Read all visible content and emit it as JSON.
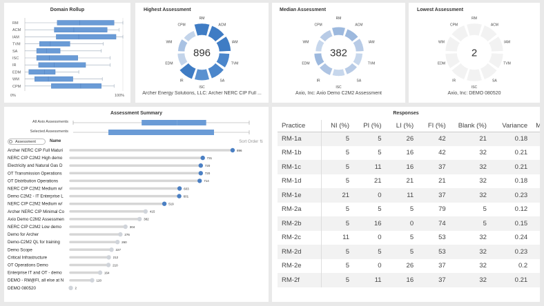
{
  "domain_rollup": {
    "title": "Domain Rollup",
    "x_min_label": "0%",
    "x_max_label": "100%",
    "chart_data": {
      "type": "boxplot",
      "categories": [
        "RM",
        "ACM",
        "IAM",
        "TVM",
        "SA",
        "ISC",
        "IR",
        "EDM",
        "WM",
        "CPM"
      ],
      "boxes": [
        {
          "min": 0.0,
          "q1": 0.33,
          "median": 0.56,
          "q3": 0.91,
          "max": 1.0
        },
        {
          "min": 0.0,
          "q1": 0.3,
          "median": 0.5,
          "q3": 0.84,
          "max": 0.96
        },
        {
          "min": 0.0,
          "q1": 0.32,
          "median": 0.55,
          "q3": 0.93,
          "max": 1.0
        },
        {
          "min": 0.0,
          "q1": 0.15,
          "median": 0.26,
          "q3": 0.46,
          "max": 0.8
        },
        {
          "min": 0.0,
          "q1": 0.12,
          "median": 0.22,
          "q3": 0.36,
          "max": 0.78
        },
        {
          "min": 0.0,
          "q1": 0.12,
          "median": 0.25,
          "q3": 0.54,
          "max": 0.87
        },
        {
          "min": 0.0,
          "q1": 0.14,
          "median": 0.3,
          "q3": 0.62,
          "max": 0.87
        },
        {
          "min": 0.0,
          "q1": 0.04,
          "median": 0.2,
          "q3": 0.31,
          "max": 0.55
        },
        {
          "min": 0.0,
          "q1": 0.1,
          "median": 0.24,
          "q3": 0.49,
          "max": 0.79
        },
        {
          "min": 0.0,
          "q1": 0.27,
          "median": 0.57,
          "q3": 0.78,
          "max": 0.91
        }
      ]
    }
  },
  "highest": {
    "title": "Highest Assessment",
    "score": "896",
    "caption": "Archer Energy Solutions, LLC: Archer NERC CIP Full ...",
    "chart_data": {
      "type": "radial",
      "categories": [
        "RM",
        "ACM",
        "IAM",
        "TVM",
        "SA",
        "ISC",
        "IR",
        "EDM",
        "WM",
        "CPM"
      ],
      "values": [
        1.0,
        0.95,
        1.0,
        0.85,
        0.88,
        0.9,
        0.95,
        0.5,
        0.45,
        0.35
      ],
      "colors": [
        "#3f7cc4",
        "#3f7cc4",
        "#3f7cc4",
        "#4b86cb",
        "#4b86cb",
        "#5a91d0",
        "#3f7cc4",
        "#c3d4ea",
        "#a9c2e3",
        "#c3d4ea"
      ]
    }
  },
  "median": {
    "title": "Median Assessment",
    "score": "382",
    "caption": "Axio, Inc: Axio Demo C2M2 Assessment",
    "chart_data": {
      "type": "radial",
      "categories": [
        "RM",
        "ACM",
        "IAM",
        "TVM",
        "SA",
        "ISC",
        "IR",
        "EDM",
        "WM",
        "CPM"
      ],
      "values": [
        0.6,
        0.55,
        0.58,
        0.45,
        0.4,
        0.42,
        0.5,
        0.5,
        0.35,
        0.45
      ],
      "colors": [
        "#9db9de",
        "#9db9de",
        "#b8cbe6",
        "#c7d7ec",
        "#b8cbe6",
        "#c7d7ec",
        "#aec4e3",
        "#9db9de",
        "#c7d7ec",
        "#b8cbe6"
      ]
    }
  },
  "lowest": {
    "title": "Lowest Assessment",
    "score": "2",
    "caption": "Axio, Inc: DEMO 080520",
    "chart_data": {
      "type": "radial",
      "categories": [
        "RM",
        "ACM",
        "IAM",
        "TVM",
        "SA",
        "ISC",
        "IR",
        "EDM",
        "WM",
        "CPM"
      ],
      "values": [
        0,
        0,
        0,
        0,
        0,
        0,
        0,
        0,
        0,
        0
      ],
      "colors": [
        "#f2f2f2",
        "#f2f2f2",
        "#f2f2f2",
        "#f2f2f2",
        "#f2f2f2",
        "#f2f2f2",
        "#f2f2f2",
        "#f2f2f2",
        "#f2f2f2",
        "#f2f2f2"
      ]
    }
  },
  "summary": {
    "title": "Assessment Summary",
    "all_label": "All Axio Assessments",
    "selected_label": "Selected Assessments",
    "toggle_label": "Assessment",
    "name_label": "Name",
    "sort_label": "Sort Order",
    "sort_icon": "sort-icon",
    "chart_data": {
      "type": "lollipop",
      "xmax": 900,
      "categories": [
        "Archer NERC CIP Full Maturi",
        "NERC CIP C2M2 High demo",
        "Electricity and Natural Gas D",
        "OT Transmission Operations",
        "OT Distribution Operations",
        "NERC CIP C2M2 Medium w/",
        "Demo C2M2 - IT Enterprise L",
        "NERC CIP C2M2 Medium w/",
        "Archer NERC CIP Minimal Co",
        "Axio Demo C2M2 Assessmen",
        "NERC CIP C2M2 Low demo",
        "Demo for Archer",
        "Demo-C2M2 QL for training",
        "Demo Scope",
        "Critical Infrastructure",
        "OT Operations Demo",
        "Enterprise IT and OT - demo",
        "DEMO - RM@FI, all else at N",
        "DEMO 080520"
      ],
      "values": [
        896,
        731,
        720,
        720,
        714,
        603,
        601,
        519,
        415,
        382,
        304,
        276,
        260,
        227,
        212,
        210,
        164,
        120,
        2
      ],
      "selected": [
        true,
        true,
        true,
        true,
        true,
        true,
        true,
        true,
        false,
        false,
        false,
        false,
        false,
        false,
        false,
        false,
        false,
        false,
        false
      ]
    }
  },
  "responses": {
    "title": "Responses",
    "columns": [
      "Practice",
      "NI (%)",
      "PI (%)",
      "LI (%)",
      "FI (%)",
      "Blank (%)",
      "Variance",
      "Me"
    ],
    "rows": [
      [
        "RM-1a",
        "5",
        "5",
        "26",
        "42",
        "21",
        "0.18"
      ],
      [
        "RM-1b",
        "5",
        "5",
        "16",
        "42",
        "32",
        "0.21"
      ],
      [
        "RM-1c",
        "5",
        "11",
        "16",
        "37",
        "32",
        "0.21"
      ],
      [
        "RM-1d",
        "5",
        "21",
        "21",
        "21",
        "32",
        "0.18"
      ],
      [
        "RM-1e",
        "21",
        "0",
        "11",
        "37",
        "32",
        "0.23"
      ],
      [
        "RM-2a",
        "5",
        "5",
        "5",
        "79",
        "5",
        "0.12"
      ],
      [
        "RM-2b",
        "5",
        "16",
        "0",
        "74",
        "5",
        "0.15"
      ],
      [
        "RM-2c",
        "11",
        "0",
        "5",
        "53",
        "32",
        "0.24"
      ],
      [
        "RM-2d",
        "5",
        "5",
        "5",
        "53",
        "32",
        "0.23"
      ],
      [
        "RM-2e",
        "5",
        "0",
        "26",
        "37",
        "32",
        "0.2"
      ],
      [
        "RM-2f",
        "5",
        "11",
        "16",
        "37",
        "32",
        "0.21"
      ]
    ]
  }
}
